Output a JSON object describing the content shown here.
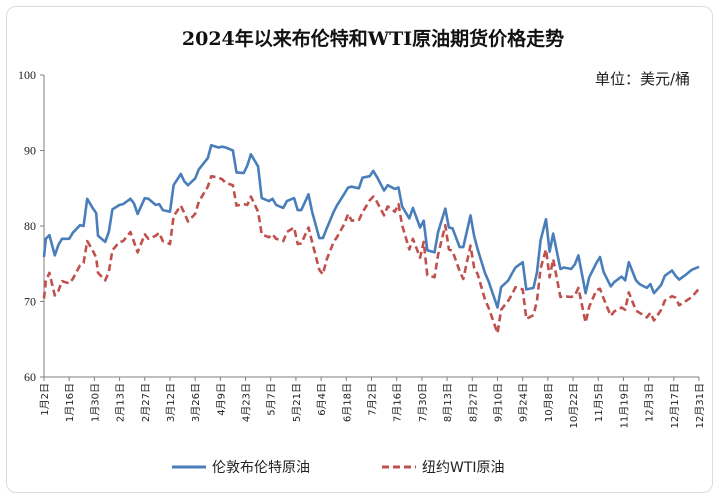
{
  "chart_data": {
    "type": "line",
    "title": "2024年以来布伦特和WTI原油期货价格走势",
    "unit_label": "单位：美元/桶",
    "ylim": [
      60,
      100
    ],
    "yticks": [
      60,
      70,
      80,
      90,
      100
    ],
    "xlim": [
      "2024-01-02",
      "2024-12-31"
    ],
    "xtick_labels": [
      "1月2日",
      "1月16日",
      "1月30日",
      "2月13日",
      "2月27日",
      "3月12日",
      "3月26日",
      "4月9日",
      "4月23日",
      "5月7日",
      "5月21日",
      "6月4日",
      "6月18日",
      "7月2日",
      "7月16日",
      "7月30日",
      "8月13日",
      "8月27日",
      "9月10日",
      "9月24日",
      "10月8日",
      "10月22日",
      "11月5日",
      "11月19日",
      "12月3日",
      "12月17日",
      "12月31日"
    ],
    "grid": false,
    "legend_position": "bottom",
    "series": [
      {
        "name": "伦敦布伦特原油",
        "color": "#4a7ebb",
        "dash": "solid",
        "points": [
          [
            "2024-01-02",
            75.9
          ],
          [
            "2024-01-03",
            78.3
          ],
          [
            "2024-01-05",
            78.8
          ],
          [
            "2024-01-08",
            76.1
          ],
          [
            "2024-01-10",
            77.5
          ],
          [
            "2024-01-12",
            78.3
          ],
          [
            "2024-01-16",
            78.3
          ],
          [
            "2024-01-18",
            79.1
          ],
          [
            "2024-01-22",
            80.1
          ],
          [
            "2024-01-24",
            80.0
          ],
          [
            "2024-01-26",
            83.6
          ],
          [
            "2024-01-29",
            82.4
          ],
          [
            "2024-01-31",
            81.7
          ],
          [
            "2024-02-01",
            78.7
          ],
          [
            "2024-02-05",
            77.9
          ],
          [
            "2024-02-07",
            79.2
          ],
          [
            "2024-02-09",
            82.2
          ],
          [
            "2024-02-13",
            82.8
          ],
          [
            "2024-02-15",
            82.9
          ],
          [
            "2024-02-19",
            83.6
          ],
          [
            "2024-02-21",
            83.0
          ],
          [
            "2024-02-23",
            81.6
          ],
          [
            "2024-02-27",
            83.7
          ],
          [
            "2024-02-29",
            83.6
          ],
          [
            "2024-03-04",
            82.8
          ],
          [
            "2024-03-06",
            82.9
          ],
          [
            "2024-03-08",
            82.1
          ],
          [
            "2024-03-12",
            81.9
          ],
          [
            "2024-03-14",
            85.4
          ],
          [
            "2024-03-18",
            86.9
          ],
          [
            "2024-03-20",
            85.9
          ],
          [
            "2024-03-22",
            85.4
          ],
          [
            "2024-03-26",
            86.3
          ],
          [
            "2024-03-28",
            87.5
          ],
          [
            "2024-04-02",
            89.0
          ],
          [
            "2024-04-04",
            90.7
          ],
          [
            "2024-04-08",
            90.4
          ],
          [
            "2024-04-10",
            90.5
          ],
          [
            "2024-04-12",
            90.4
          ],
          [
            "2024-04-16",
            90.0
          ],
          [
            "2024-04-18",
            87.1
          ],
          [
            "2024-04-22",
            87.0
          ],
          [
            "2024-04-24",
            88.0
          ],
          [
            "2024-04-26",
            89.5
          ],
          [
            "2024-04-30",
            87.9
          ],
          [
            "2024-05-02",
            83.7
          ],
          [
            "2024-05-06",
            83.3
          ],
          [
            "2024-05-08",
            83.6
          ],
          [
            "2024-05-10",
            82.8
          ],
          [
            "2024-05-14",
            82.4
          ],
          [
            "2024-05-16",
            83.3
          ],
          [
            "2024-05-20",
            83.7
          ],
          [
            "2024-05-22",
            82.1
          ],
          [
            "2024-05-24",
            82.1
          ],
          [
            "2024-05-28",
            84.2
          ],
          [
            "2024-05-30",
            81.9
          ],
          [
            "2024-06-03",
            78.4
          ],
          [
            "2024-06-05",
            78.4
          ],
          [
            "2024-06-07",
            79.6
          ],
          [
            "2024-06-11",
            81.9
          ],
          [
            "2024-06-13",
            82.8
          ],
          [
            "2024-06-17",
            84.3
          ],
          [
            "2024-06-19",
            85.1
          ],
          [
            "2024-06-21",
            85.2
          ],
          [
            "2024-06-25",
            85.0
          ],
          [
            "2024-06-27",
            86.4
          ],
          [
            "2024-07-01",
            86.6
          ],
          [
            "2024-07-03",
            87.3
          ],
          [
            "2024-07-05",
            86.5
          ],
          [
            "2024-07-09",
            84.7
          ],
          [
            "2024-07-11",
            85.4
          ],
          [
            "2024-07-15",
            84.9
          ],
          [
            "2024-07-17",
            85.1
          ],
          [
            "2024-07-19",
            82.6
          ],
          [
            "2024-07-23",
            81.0
          ],
          [
            "2024-07-25",
            82.4
          ],
          [
            "2024-07-29",
            79.8
          ],
          [
            "2024-07-31",
            80.7
          ],
          [
            "2024-08-02",
            76.8
          ],
          [
            "2024-08-06",
            76.5
          ],
          [
            "2024-08-08",
            79.2
          ],
          [
            "2024-08-12",
            82.3
          ],
          [
            "2024-08-14",
            79.8
          ],
          [
            "2024-08-16",
            79.7
          ],
          [
            "2024-08-20",
            77.2
          ],
          [
            "2024-08-22",
            77.2
          ],
          [
            "2024-08-26",
            81.4
          ],
          [
            "2024-08-28",
            78.7
          ],
          [
            "2024-08-30",
            76.9
          ],
          [
            "2024-09-03",
            73.8
          ],
          [
            "2024-09-05",
            72.7
          ],
          [
            "2024-09-10",
            69.2
          ],
          [
            "2024-09-12",
            71.9
          ],
          [
            "2024-09-16",
            72.8
          ],
          [
            "2024-09-18",
            73.7
          ],
          [
            "2024-09-20",
            74.5
          ],
          [
            "2024-09-24",
            75.2
          ],
          [
            "2024-09-26",
            71.6
          ],
          [
            "2024-09-30",
            71.8
          ],
          [
            "2024-10-02",
            73.9
          ],
          [
            "2024-10-04",
            78.1
          ],
          [
            "2024-10-07",
            80.9
          ],
          [
            "2024-10-09",
            76.6
          ],
          [
            "2024-10-11",
            79.0
          ],
          [
            "2024-10-15",
            74.3
          ],
          [
            "2024-10-17",
            74.5
          ],
          [
            "2024-10-21",
            74.3
          ],
          [
            "2024-10-23",
            74.9
          ],
          [
            "2024-10-25",
            76.1
          ],
          [
            "2024-10-29",
            71.1
          ],
          [
            "2024-10-31",
            73.2
          ],
          [
            "2024-11-04",
            75.1
          ],
          [
            "2024-11-06",
            75.9
          ],
          [
            "2024-11-08",
            73.9
          ],
          [
            "2024-11-12",
            72.0
          ],
          [
            "2024-11-14",
            72.6
          ],
          [
            "2024-11-18",
            73.3
          ],
          [
            "2024-11-20",
            72.8
          ],
          [
            "2024-11-22",
            75.2
          ],
          [
            "2024-11-26",
            72.8
          ],
          [
            "2024-11-28",
            72.3
          ],
          [
            "2024-12-02",
            71.8
          ],
          [
            "2024-12-04",
            72.3
          ],
          [
            "2024-12-06",
            71.1
          ],
          [
            "2024-12-10",
            72.2
          ],
          [
            "2024-12-12",
            73.4
          ],
          [
            "2024-12-16",
            74.1
          ],
          [
            "2024-12-18",
            73.4
          ],
          [
            "2024-12-20",
            72.9
          ],
          [
            "2024-12-24",
            73.6
          ],
          [
            "2024-12-27",
            74.2
          ],
          [
            "2024-12-31",
            74.6
          ]
        ]
      },
      {
        "name": "纽约WTI原油",
        "color": "#c0504d",
        "dash": "dashed",
        "points": [
          [
            "2024-01-02",
            70.4
          ],
          [
            "2024-01-03",
            72.7
          ],
          [
            "2024-01-05",
            73.8
          ],
          [
            "2024-01-08",
            70.8
          ],
          [
            "2024-01-10",
            71.4
          ],
          [
            "2024-01-12",
            72.7
          ],
          [
            "2024-01-16",
            72.4
          ],
          [
            "2024-01-18",
            73.0
          ],
          [
            "2024-01-22",
            74.8
          ],
          [
            "2024-01-24",
            75.1
          ],
          [
            "2024-01-26",
            78.0
          ],
          [
            "2024-01-29",
            76.8
          ],
          [
            "2024-01-31",
            75.8
          ],
          [
            "2024-02-01",
            73.8
          ],
          [
            "2024-02-05",
            72.8
          ],
          [
            "2024-02-07",
            73.9
          ],
          [
            "2024-02-09",
            76.8
          ],
          [
            "2024-02-13",
            77.9
          ],
          [
            "2024-02-15",
            78.0
          ],
          [
            "2024-02-19",
            79.2
          ],
          [
            "2024-02-21",
            77.9
          ],
          [
            "2024-02-23",
            76.5
          ],
          [
            "2024-02-27",
            78.9
          ],
          [
            "2024-02-29",
            78.3
          ],
          [
            "2024-03-04",
            78.7
          ],
          [
            "2024-03-06",
            79.1
          ],
          [
            "2024-03-08",
            78.0
          ],
          [
            "2024-03-12",
            77.6
          ],
          [
            "2024-03-14",
            81.3
          ],
          [
            "2024-03-18",
            82.7
          ],
          [
            "2024-03-20",
            81.7
          ],
          [
            "2024-03-22",
            80.6
          ],
          [
            "2024-03-26",
            81.6
          ],
          [
            "2024-03-28",
            83.2
          ],
          [
            "2024-04-02",
            85.2
          ],
          [
            "2024-04-04",
            86.6
          ],
          [
            "2024-04-08",
            86.4
          ],
          [
            "2024-04-10",
            86.2
          ],
          [
            "2024-04-12",
            85.7
          ],
          [
            "2024-04-16",
            85.4
          ],
          [
            "2024-04-18",
            82.7
          ],
          [
            "2024-04-22",
            82.9
          ],
          [
            "2024-04-24",
            82.8
          ],
          [
            "2024-04-26",
            83.9
          ],
          [
            "2024-04-30",
            81.9
          ],
          [
            "2024-05-02",
            78.9
          ],
          [
            "2024-05-06",
            78.5
          ],
          [
            "2024-05-08",
            78.9
          ],
          [
            "2024-05-10",
            78.3
          ],
          [
            "2024-05-14",
            78.0
          ],
          [
            "2024-05-16",
            79.2
          ],
          [
            "2024-05-20",
            79.8
          ],
          [
            "2024-05-22",
            77.6
          ],
          [
            "2024-05-24",
            77.7
          ],
          [
            "2024-05-28",
            79.8
          ],
          [
            "2024-05-30",
            77.9
          ],
          [
            "2024-06-03",
            74.2
          ],
          [
            "2024-06-05",
            73.6
          ],
          [
            "2024-06-07",
            75.5
          ],
          [
            "2024-06-11",
            77.9
          ],
          [
            "2024-06-13",
            78.6
          ],
          [
            "2024-06-17",
            80.3
          ],
          [
            "2024-06-19",
            81.6
          ],
          [
            "2024-06-21",
            80.7
          ],
          [
            "2024-06-25",
            80.8
          ],
          [
            "2024-06-27",
            81.8
          ],
          [
            "2024-07-01",
            83.4
          ],
          [
            "2024-07-03",
            83.9
          ],
          [
            "2024-07-05",
            83.2
          ],
          [
            "2024-07-09",
            81.4
          ],
          [
            "2024-07-11",
            82.6
          ],
          [
            "2024-07-15",
            81.9
          ],
          [
            "2024-07-17",
            82.9
          ],
          [
            "2024-07-19",
            80.1
          ],
          [
            "2024-07-23",
            76.9
          ],
          [
            "2024-07-25",
            78.3
          ],
          [
            "2024-07-29",
            75.8
          ],
          [
            "2024-07-31",
            77.9
          ],
          [
            "2024-08-02",
            73.5
          ],
          [
            "2024-08-06",
            73.2
          ],
          [
            "2024-08-08",
            76.2
          ],
          [
            "2024-08-12",
            80.1
          ],
          [
            "2024-08-14",
            76.9
          ],
          [
            "2024-08-16",
            76.7
          ],
          [
            "2024-08-20",
            74.0
          ],
          [
            "2024-08-22",
            73.0
          ],
          [
            "2024-08-26",
            77.4
          ],
          [
            "2024-08-28",
            74.5
          ],
          [
            "2024-08-30",
            73.6
          ],
          [
            "2024-09-03",
            70.3
          ],
          [
            "2024-09-05",
            69.2
          ],
          [
            "2024-09-10",
            65.8
          ],
          [
            "2024-09-12",
            68.9
          ],
          [
            "2024-09-16",
            70.1
          ],
          [
            "2024-09-18",
            70.9
          ],
          [
            "2024-09-20",
            71.9
          ],
          [
            "2024-09-24",
            71.6
          ],
          [
            "2024-09-26",
            67.7
          ],
          [
            "2024-09-30",
            68.2
          ],
          [
            "2024-10-02",
            70.1
          ],
          [
            "2024-10-04",
            74.4
          ],
          [
            "2024-10-07",
            76.9
          ],
          [
            "2024-10-09",
            73.2
          ],
          [
            "2024-10-11",
            75.6
          ],
          [
            "2024-10-15",
            70.6
          ],
          [
            "2024-10-17",
            70.7
          ],
          [
            "2024-10-21",
            70.6
          ],
          [
            "2024-10-23",
            70.8
          ],
          [
            "2024-10-25",
            71.8
          ],
          [
            "2024-10-29",
            67.2
          ],
          [
            "2024-10-31",
            69.3
          ],
          [
            "2024-11-04",
            71.5
          ],
          [
            "2024-11-06",
            71.7
          ],
          [
            "2024-11-08",
            70.4
          ],
          [
            "2024-11-12",
            68.1
          ],
          [
            "2024-11-14",
            68.7
          ],
          [
            "2024-11-18",
            69.2
          ],
          [
            "2024-11-20",
            68.9
          ],
          [
            "2024-11-22",
            71.2
          ],
          [
            "2024-11-26",
            68.8
          ],
          [
            "2024-11-28",
            68.5
          ],
          [
            "2024-12-02",
            67.9
          ],
          [
            "2024-12-04",
            68.5
          ],
          [
            "2024-12-06",
            67.5
          ],
          [
            "2024-12-10",
            68.9
          ],
          [
            "2024-12-12",
            70.1
          ],
          [
            "2024-12-16",
            70.7
          ],
          [
            "2024-12-18",
            70.5
          ],
          [
            "2024-12-20",
            69.5
          ],
          [
            "2024-12-24",
            70.1
          ],
          [
            "2024-12-27",
            70.6
          ],
          [
            "2024-12-31",
            71.7
          ]
        ]
      }
    ]
  }
}
